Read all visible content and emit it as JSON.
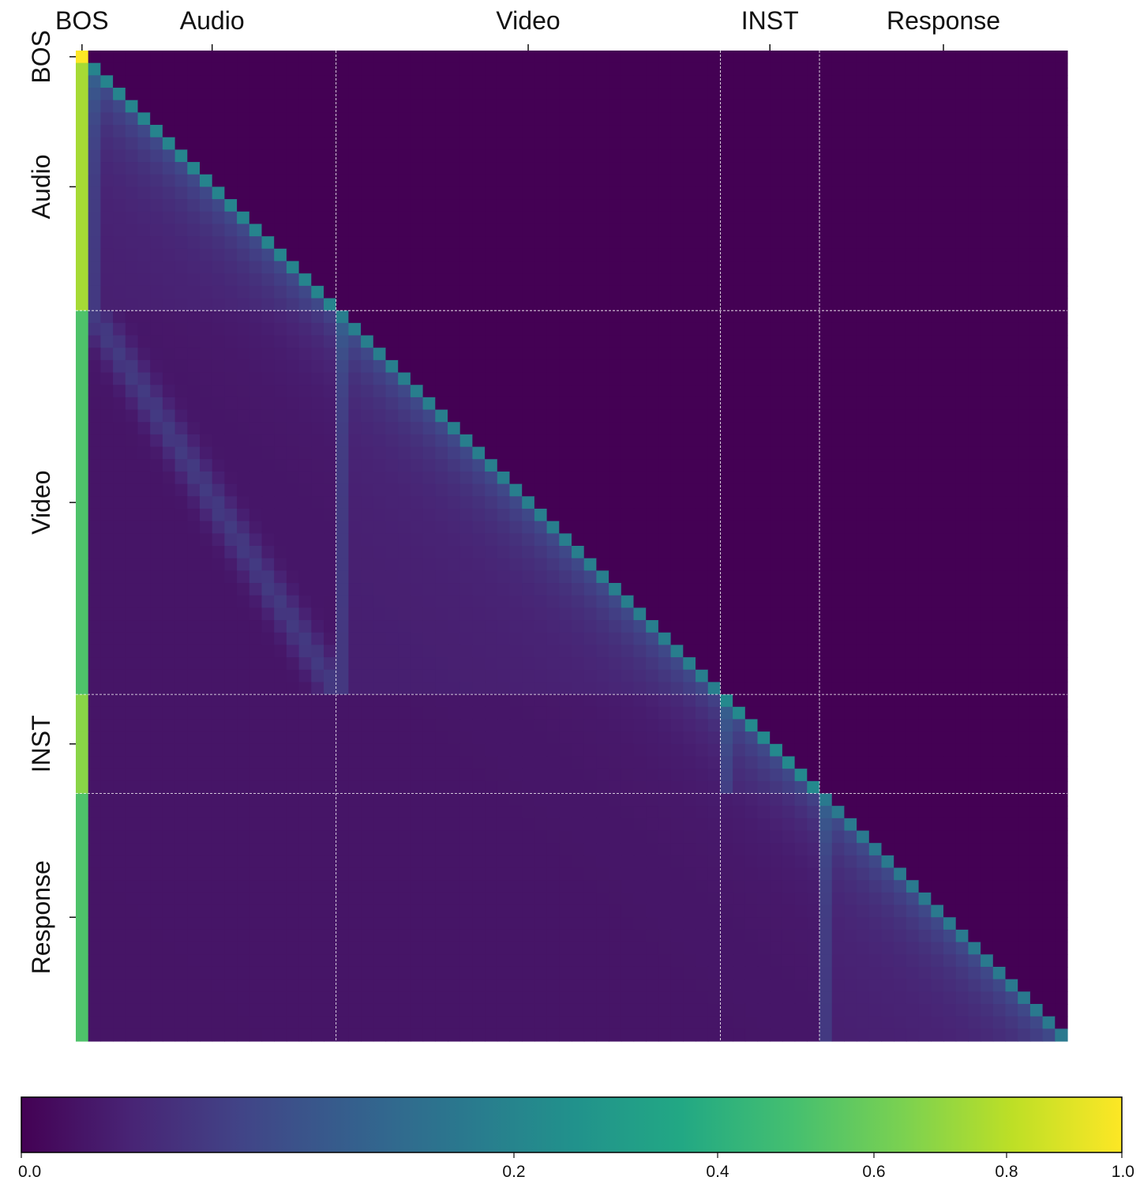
{
  "chart_data": {
    "type": "heatmap",
    "title": "",
    "xlabel": "",
    "ylabel": "",
    "segments": [
      "BOS",
      "Audio",
      "Video",
      "INST",
      "Response"
    ],
    "segment_token_counts": [
      1,
      20,
      31,
      8,
      20
    ],
    "colorbar": {
      "colormap": "viridis",
      "range": [
        0.0,
        1.0
      ],
      "tick_values": [
        0.0,
        0.2,
        0.4,
        0.6,
        0.8,
        1.0
      ],
      "tick_labels": [
        "0.0",
        "0.2",
        "0.4",
        "0.6",
        "0.8",
        "1.0"
      ]
    },
    "values_description": "causal (lower-triangular) attention map",
    "bos_column_values": {
      "BOS": 1.0,
      "Audio": 0.75,
      "Video": 0.52,
      "INST": 0.68,
      "Response": 0.52
    },
    "diagonal_values": {
      "Audio": 0.2,
      "Video": 0.19,
      "INST": 0.22,
      "Response": 0.18
    }
  }
}
